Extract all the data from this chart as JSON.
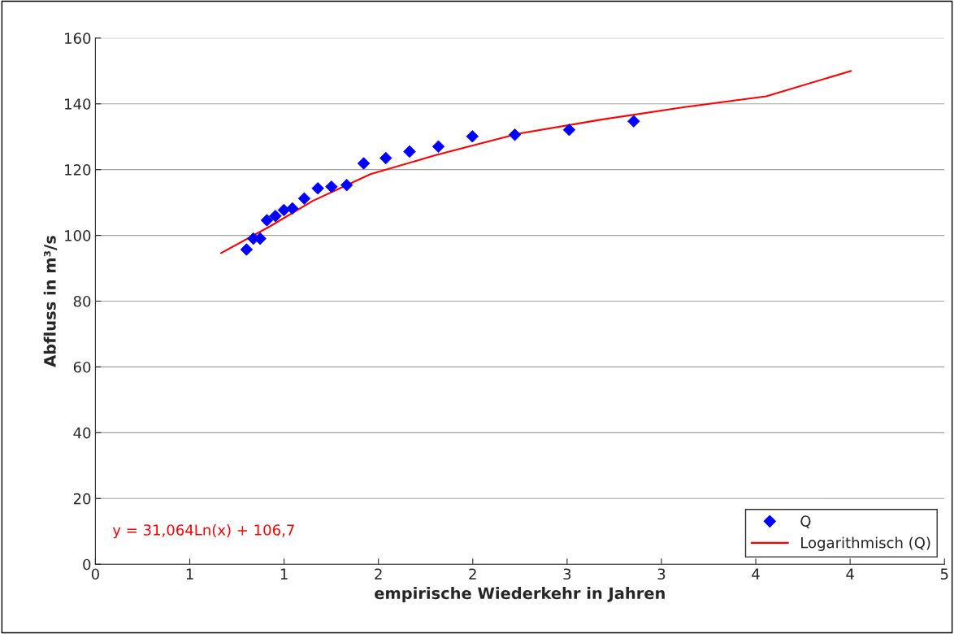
{
  "chart_data": {
    "type": "scatter",
    "xlabel": "empirische Wiederkehr in Jahren",
    "ylabel": "Abfluss in m³/s",
    "xlim": [
      0,
      5
    ],
    "ylim": [
      0,
      160
    ],
    "xticks": [
      0,
      {
        "value": 0.5556,
        "label": "1"
      },
      {
        "value": 1.1111,
        "label": "1"
      },
      {
        "value": 1.6667,
        "label": "2"
      },
      {
        "value": 2.2222,
        "label": "2"
      },
      {
        "value": 2.7778,
        "label": "3"
      },
      {
        "value": 3.3333,
        "label": "3"
      },
      {
        "value": 3.8889,
        "label": "4"
      },
      {
        "value": 4.4444,
        "label": "4"
      },
      5
    ],
    "yticks": [
      0,
      20,
      40,
      60,
      80,
      100,
      120,
      140,
      160
    ],
    "grid": "y",
    "legend": "bottom right",
    "series": [
      {
        "name": "Q",
        "marker": "diamond",
        "color": "#0000ff",
        "x": [
          0.89,
          0.93,
          0.97,
          1.01,
          1.06,
          1.11,
          1.16,
          1.23,
          1.31,
          1.39,
          1.48,
          1.58,
          1.71,
          1.85,
          2.02,
          2.22,
          2.47,
          2.79,
          3.17
        ],
        "values": [
          95.7,
          99.0,
          99.0,
          104.6,
          105.9,
          107.7,
          108.2,
          111.2,
          114.3,
          114.8,
          115.3,
          121.9,
          123.5,
          125.5,
          127.0,
          130.1,
          130.6,
          132.1,
          134.7
        ]
      },
      {
        "name": "Logarithmisch (Q)",
        "type": "line",
        "color": "#ff0000",
        "x": [
          0.74,
          1.03,
          1.28,
          1.62,
          2.01,
          2.49,
          2.98,
          3.47,
          3.95,
          4.45
        ],
        "values": [
          94.6,
          102.8,
          110.5,
          118.6,
          124.5,
          130.9,
          135.2,
          139.0,
          142.3,
          150.0
        ]
      }
    ],
    "annotations": [
      "y = 31,064Ln(x) + 106,7"
    ]
  }
}
